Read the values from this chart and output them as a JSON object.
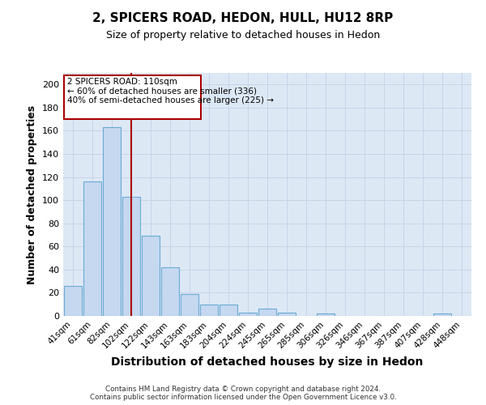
{
  "title_line1": "2, SPICERS ROAD, HEDON, HULL, HU12 8RP",
  "title_line2": "Size of property relative to detached houses in Hedon",
  "xlabel": "Distribution of detached houses by size in Hedon",
  "ylabel": "Number of detached properties",
  "bar_labels": [
    "41sqm",
    "61sqm",
    "82sqm",
    "102sqm",
    "122sqm",
    "143sqm",
    "163sqm",
    "183sqm",
    "204sqm",
    "224sqm",
    "245sqm",
    "265sqm",
    "285sqm",
    "306sqm",
    "326sqm",
    "346sqm",
    "367sqm",
    "387sqm",
    "407sqm",
    "428sqm",
    "448sqm"
  ],
  "bar_values": [
    26,
    116,
    163,
    103,
    69,
    42,
    19,
    10,
    10,
    3,
    6,
    3,
    0,
    2,
    0,
    0,
    0,
    0,
    0,
    2,
    0
  ],
  "bar_color": "#c5d8f0",
  "bar_edge_color": "#6aaad4",
  "background_color": "#dde8f5",
  "vline_x": 3,
  "vline_color": "#aa0000",
  "annotation_text": "2 SPICERS ROAD: 110sqm\n← 60% of detached houses are smaller (336)\n40% of semi-detached houses are larger (225) →",
  "annotation_box_color": "white",
  "annotation_box_edge": "#aa0000",
  "ylim": [
    0,
    210
  ],
  "yticks": [
    0,
    20,
    40,
    60,
    80,
    100,
    120,
    140,
    160,
    180,
    200
  ],
  "footer": "Contains HM Land Registry data © Crown copyright and database right 2024.\nContains public sector information licensed under the Open Government Licence v3.0.",
  "title1_fontsize": 11,
  "title2_fontsize": 9,
  "xlabel_fontsize": 10,
  "ylabel_fontsize": 9
}
